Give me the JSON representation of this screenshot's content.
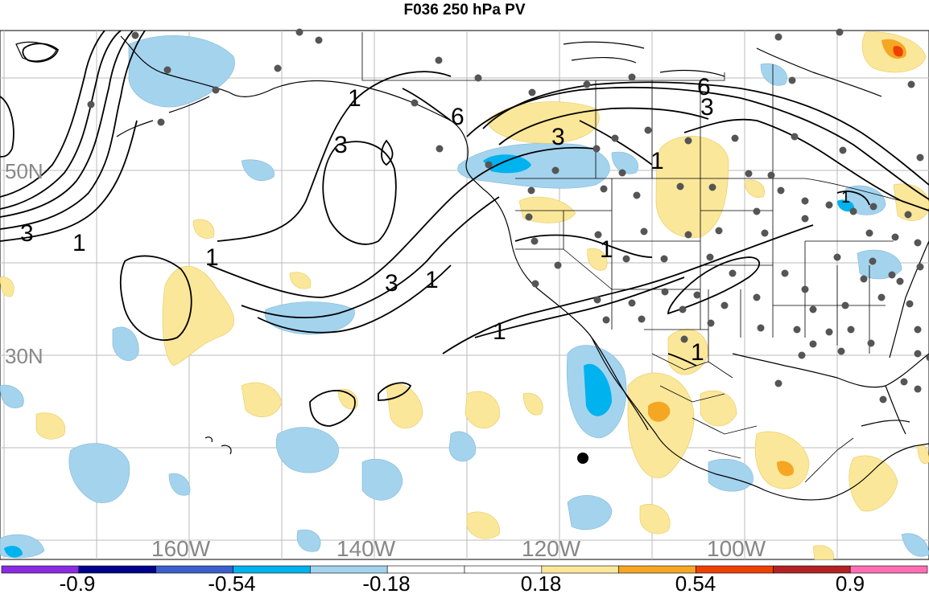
{
  "title": "F036 250 hPa PV",
  "lat_labels": [
    "50N",
    "30N"
  ],
  "lon_labels": [
    "160W",
    "140W",
    "120W",
    "100W"
  ],
  "contour_labels": [
    "1",
    "3",
    "6"
  ],
  "colors": {
    "neg_strong_purple": "#8a2be2",
    "neg_navy": "#00008b",
    "neg_blue": "#3a5fcd",
    "neg_cyan": "#00b2ee",
    "neg_light": "#a4d3ee",
    "pos_light": "#fbe79a",
    "pos_orange": "#f5a623",
    "pos_red": "#ee4000",
    "pos_dark_red": "#b22222",
    "pos_pink": "#ff6eb4"
  },
  "colorbar": {
    "labels": [
      "-0.9",
      "-0.54",
      "-0.18",
      "0.18",
      "0.54",
      "0.9"
    ],
    "bins": [
      "#8a2be2",
      "#00008b",
      "#3a5fcd",
      "#00b2ee",
      "#a4d3ee",
      "#ffffff",
      "#ffffff",
      "#fbe79a",
      "#f5a623",
      "#ee4000",
      "#b22222",
      "#ff6eb4"
    ]
  }
}
